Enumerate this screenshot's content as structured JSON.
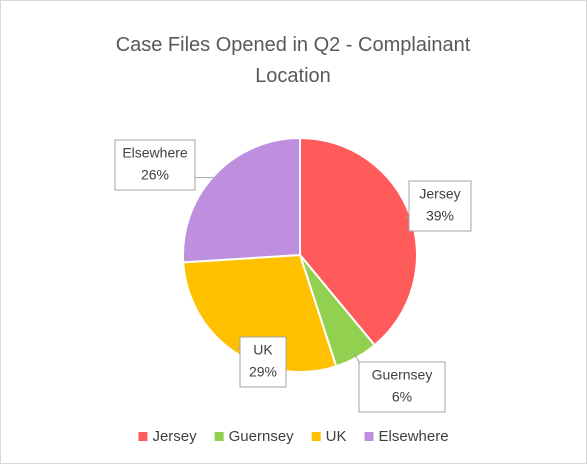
{
  "chart_data": {
    "type": "pie",
    "title": "Case Files Opened in Q2 - Complainant Location",
    "categories": [
      "Jersey",
      "Guernsey",
      "UK",
      "Elsewhere"
    ],
    "values": [
      39,
      6,
      29,
      26
    ],
    "value_labels": [
      "39%",
      "6%",
      "29%",
      "26%"
    ],
    "colors": [
      "#ff5b5b",
      "#92d050",
      "#ffc000",
      "#bf8fdf"
    ],
    "legend": "bottom"
  }
}
